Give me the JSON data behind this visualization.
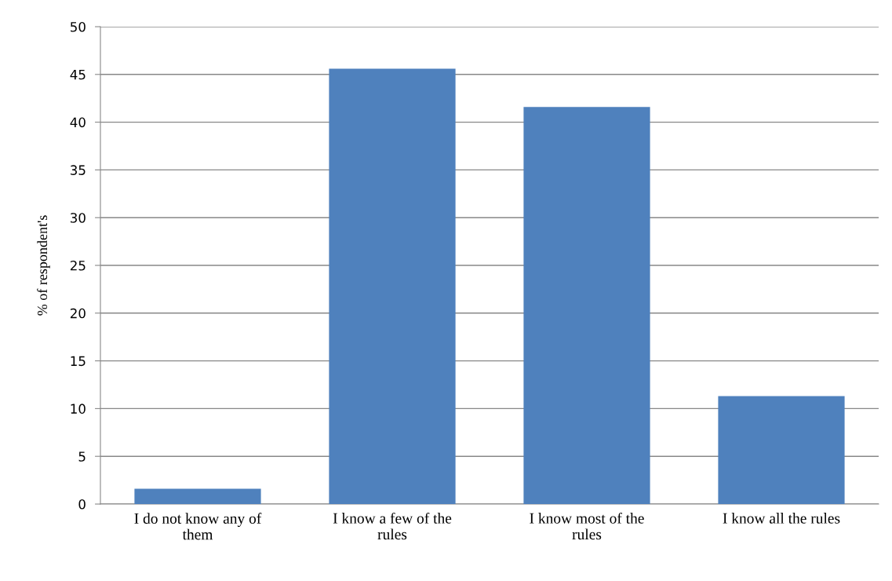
{
  "chart_data": {
    "type": "bar",
    "ylabel": "% of respondent's",
    "categories": [
      "I do not know any of them",
      "I know a few of the rules",
      "I know most of the rules",
      "I know all the rules"
    ],
    "values": [
      1.6,
      45.6,
      41.6,
      11.3
    ],
    "color": "#4f81bd",
    "ylim": [
      0,
      50
    ],
    "yticks": [
      0,
      5,
      10,
      15,
      20,
      25,
      30,
      35,
      40,
      45,
      50
    ],
    "grid": "y",
    "legend": false
  }
}
